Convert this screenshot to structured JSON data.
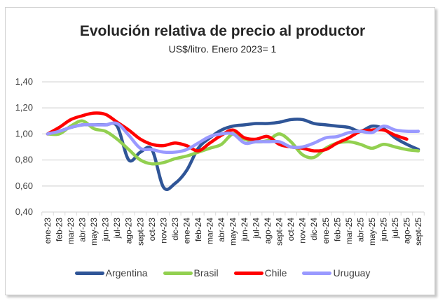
{
  "chart_data": {
    "type": "line",
    "title": "Evolución relativa de precio al productor",
    "subtitle": "US$/litro. Enero 2023= 1",
    "xlabel": "",
    "ylabel": "",
    "ylim": [
      0.4,
      1.4
    ],
    "yticks": [
      "1,40",
      "1,20",
      "1,00",
      "0,80",
      "0,60",
      "0,40"
    ],
    "ytick_values": [
      1.4,
      1.2,
      1.0,
      0.8,
      0.6,
      0.4
    ],
    "grid": true,
    "legend_position": "bottom",
    "categories": [
      "ene-23",
      "feb-23",
      "mar-23",
      "abr-23",
      "may-23",
      "jun-23",
      "jul-23",
      "ago-23",
      "sept-23",
      "oct-23",
      "nov-23",
      "dic-23",
      "ene-24",
      "feb-24",
      "mar-24",
      "abr-24",
      "may-24",
      "jun-24",
      "jul-24",
      "ago-24",
      "sept-24",
      "oct-24",
      "nov-24",
      "dic-24",
      "ene-25",
      "feb-25",
      "mar-25",
      "abr-25",
      "may-25",
      "jun-25",
      "jul-25",
      "ago-25",
      "sept-25"
    ],
    "series": [
      {
        "name": "Argentina",
        "color": "#2F5597",
        "values": [
          1.0,
          1.02,
          1.05,
          1.07,
          1.07,
          1.07,
          1.06,
          0.8,
          0.86,
          0.88,
          0.59,
          0.62,
          0.72,
          0.89,
          0.97,
          1.03,
          1.06,
          1.07,
          1.08,
          1.08,
          1.09,
          1.11,
          1.11,
          1.08,
          1.07,
          1.06,
          1.05,
          1.02,
          1.06,
          1.04,
          0.97,
          0.92,
          0.88
        ]
      },
      {
        "name": "Brasil",
        "color": "#92D050",
        "values": [
          1.0,
          1.0,
          1.06,
          1.1,
          1.04,
          1.02,
          0.96,
          0.88,
          0.8,
          0.77,
          0.78,
          0.81,
          0.83,
          0.86,
          0.89,
          0.92,
          1.0,
          0.96,
          0.94,
          0.95,
          1.0,
          0.94,
          0.84,
          0.82,
          0.89,
          0.93,
          0.94,
          0.92,
          0.89,
          0.92,
          0.9,
          0.88,
          0.87
        ]
      },
      {
        "name": "Chile",
        "color": "#FF0000",
        "values": [
          1.0,
          1.05,
          1.11,
          1.14,
          1.16,
          1.15,
          1.09,
          1.03,
          0.96,
          0.92,
          0.91,
          0.93,
          0.91,
          0.87,
          0.93,
          0.99,
          1.03,
          0.97,
          0.96,
          0.98,
          0.92,
          0.9,
          0.89,
          0.87,
          0.88,
          0.93,
          0.97,
          1.02,
          1.03,
          1.03,
          0.99,
          0.96,
          null
        ]
      },
      {
        "name": "Uruguay",
        "color": "#9999FF",
        "values": [
          1.0,
          1.02,
          1.05,
          1.07,
          1.07,
          1.07,
          1.08,
          0.99,
          0.89,
          0.88,
          0.86,
          0.86,
          0.88,
          0.93,
          0.98,
          1.0,
          1.0,
          0.93,
          0.94,
          0.94,
          0.94,
          0.9,
          0.9,
          0.93,
          0.97,
          0.98,
          1.01,
          1.02,
          1.01,
          1.06,
          1.03,
          1.02,
          1.02
        ]
      }
    ]
  }
}
